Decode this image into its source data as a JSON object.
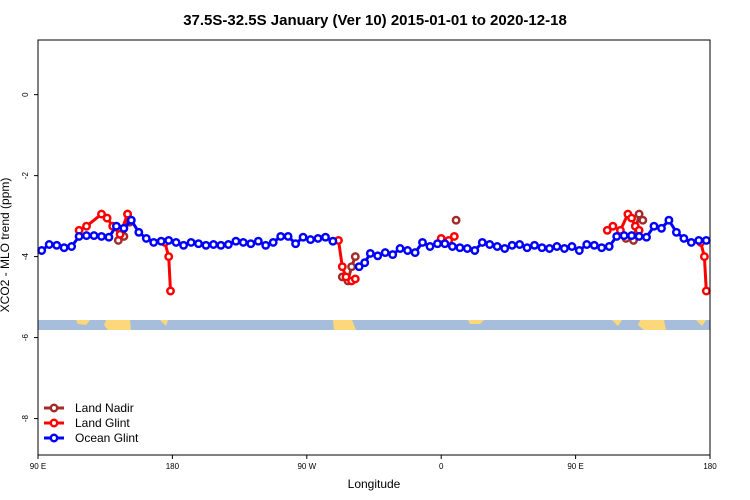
{
  "chart_data": {
    "type": "line",
    "title": "37.5S-32.5S January (Ver 10)   2015-01-01 to 2020-12-18",
    "xlabel": "Longitude",
    "ylabel": "XCO2 - MLO trend (ppm)",
    "xlim": [
      90,
      450
    ],
    "ylim": [
      -8.9,
      1.35
    ],
    "x_ticks": [
      {
        "value": 90,
        "label": "90 E"
      },
      {
        "value": 162,
        "label": "180"
      },
      {
        "value": 234,
        "label": "90 W"
      },
      {
        "value": 306,
        "label": "0"
      },
      {
        "value": 378,
        "label": "90 E"
      },
      {
        "value": 450,
        "label": "180"
      }
    ],
    "y_ticks": [
      {
        "value": 0,
        "label": "0"
      },
      {
        "value": -2,
        "label": "-2"
      },
      {
        "value": -4,
        "label": "-4"
      },
      {
        "value": -6,
        "label": "-6"
      },
      {
        "value": -8,
        "label": "-8"
      }
    ],
    "legend_position": "bottom-left",
    "colors": {
      "ocean_band": "#a6bddb",
      "land_band": "#fdd87a"
    },
    "series": [
      {
        "name": "Land Nadir",
        "color": "#a52a2a",
        "segments": [
          [
            [
              133,
              -3.6
            ],
            [
              136,
              -3.5
            ],
            [
              138,
              -2.95
            ],
            [
              139,
              -3.15
            ]
          ],
          [
            [
              253,
              -4.5
            ],
            [
              256,
              -4.6
            ],
            [
              258,
              -4.25
            ],
            [
              260,
              -4.0
            ]
          ],
          [
            [
              314,
              -3.1
            ]
          ],
          [
            [
              405,
              -3.55
            ],
            [
              409,
              -3.6
            ],
            [
              412,
              -2.95
            ],
            [
              414,
              -3.1
            ]
          ]
        ]
      },
      {
        "name": "Land Glint",
        "color": "#ff0000",
        "segments": [
          [
            [
              112,
              -3.35
            ],
            [
              116,
              -3.25
            ],
            [
              124,
              -2.95
            ],
            [
              127,
              -3.05
            ],
            [
              130,
              -3.25
            ],
            [
              134,
              -3.45
            ],
            [
              138,
              -2.95
            ]
          ],
          [
            [
              158,
              -3.65
            ],
            [
              160,
              -4.0
            ],
            [
              161,
              -4.85
            ]
          ],
          [
            [
              251,
              -3.6
            ],
            [
              253,
              -4.25
            ],
            [
              255,
              -4.5
            ],
            [
              258,
              -4.6
            ],
            [
              260,
              -4.55
            ]
          ],
          [
            [
              306,
              -3.55
            ],
            [
              310,
              -3.6
            ],
            [
              313,
              -3.5
            ]
          ],
          [
            [
              395,
              -3.35
            ],
            [
              398,
              -3.25
            ]
          ],
          [
            [
              402,
              -3.35
            ],
            [
              406,
              -2.95
            ],
            [
              408,
              -3.05
            ],
            [
              410,
              -3.25
            ],
            [
              412,
              -3.35
            ]
          ],
          [
            [
              445,
              -3.65
            ],
            [
              447,
              -4.0
            ],
            [
              448,
              -4.85
            ]
          ]
        ]
      },
      {
        "name": "Ocean Glint",
        "color": "#0000ff",
        "segments": [
          [
            [
              92,
              -3.85
            ],
            [
              96,
              -3.7
            ],
            [
              100,
              -3.72
            ],
            [
              104,
              -3.78
            ],
            [
              108,
              -3.75
            ],
            [
              112,
              -3.5
            ],
            [
              116,
              -3.48
            ],
            [
              120,
              -3.48
            ],
            [
              124,
              -3.5
            ],
            [
              128,
              -3.52
            ],
            [
              132,
              -3.25
            ],
            [
              136,
              -3.3
            ],
            [
              140,
              -3.1
            ],
            [
              144,
              -3.4
            ],
            [
              148,
              -3.55
            ],
            [
              152,
              -3.65
            ],
            [
              156,
              -3.62
            ],
            [
              160,
              -3.6
            ],
            [
              164,
              -3.65
            ],
            [
              168,
              -3.72
            ],
            [
              172,
              -3.65
            ],
            [
              176,
              -3.68
            ],
            [
              180,
              -3.72
            ],
            [
              184,
              -3.7
            ],
            [
              188,
              -3.72
            ],
            [
              192,
              -3.7
            ],
            [
              196,
              -3.62
            ],
            [
              200,
              -3.65
            ],
            [
              204,
              -3.68
            ],
            [
              208,
              -3.62
            ],
            [
              212,
              -3.72
            ],
            [
              216,
              -3.65
            ],
            [
              220,
              -3.5
            ],
            [
              224,
              -3.5
            ],
            [
              228,
              -3.68
            ],
            [
              232,
              -3.52
            ],
            [
              236,
              -3.58
            ],
            [
              240,
              -3.55
            ],
            [
              244,
              -3.52
            ],
            [
              248,
              -3.62
            ]
          ],
          [
            [
              262,
              -4.25
            ],
            [
              265,
              -4.15
            ],
            [
              268,
              -3.92
            ],
            [
              272,
              -3.98
            ],
            [
              276,
              -3.9
            ],
            [
              280,
              -3.95
            ],
            [
              284,
              -3.8
            ],
            [
              288,
              -3.85
            ],
            [
              292,
              -3.9
            ],
            [
              296,
              -3.65
            ],
            [
              300,
              -3.75
            ],
            [
              304,
              -3.68
            ],
            [
              308,
              -3.68
            ],
            [
              312,
              -3.75
            ],
            [
              316,
              -3.78
            ],
            [
              320,
              -3.8
            ],
            [
              324,
              -3.85
            ],
            [
              328,
              -3.65
            ],
            [
              332,
              -3.7
            ],
            [
              336,
              -3.75
            ],
            [
              340,
              -3.8
            ],
            [
              344,
              -3.72
            ],
            [
              348,
              -3.7
            ],
            [
              352,
              -3.78
            ],
            [
              356,
              -3.72
            ],
            [
              360,
              -3.78
            ],
            [
              364,
              -3.8
            ],
            [
              368,
              -3.75
            ],
            [
              372,
              -3.8
            ],
            [
              376,
              -3.75
            ],
            [
              380,
              -3.85
            ],
            [
              384,
              -3.7
            ],
            [
              388,
              -3.72
            ],
            [
              392,
              -3.78
            ],
            [
              396,
              -3.75
            ],
            [
              400,
              -3.5
            ],
            [
              404,
              -3.48
            ],
            [
              408,
              -3.48
            ],
            [
              412,
              -3.5
            ],
            [
              416,
              -3.52
            ],
            [
              420,
              -3.25
            ],
            [
              424,
              -3.3
            ],
            [
              428,
              -3.1
            ],
            [
              432,
              -3.4
            ],
            [
              436,
              -3.55
            ],
            [
              440,
              -3.65
            ],
            [
              444,
              -3.6
            ],
            [
              448,
              -3.6
            ]
          ]
        ]
      }
    ]
  }
}
